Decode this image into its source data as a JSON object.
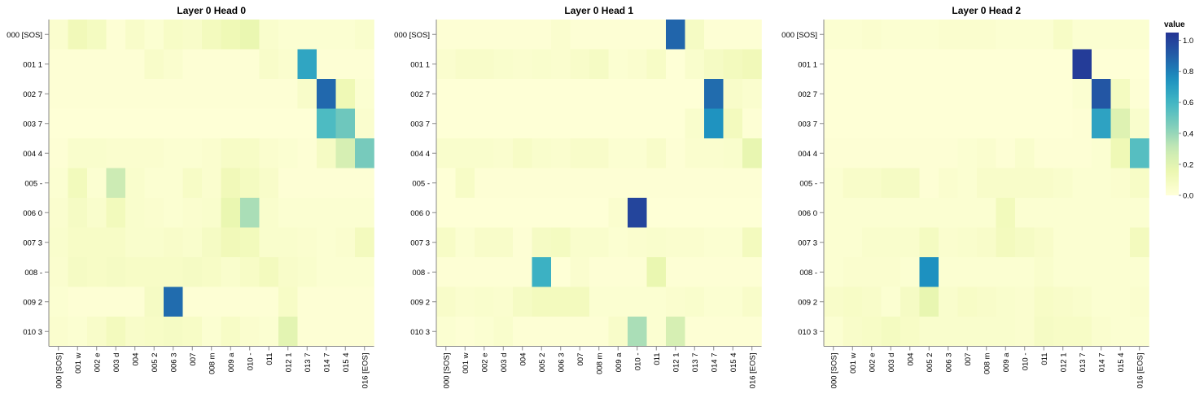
{
  "chart_data": [
    {
      "type": "heatmap",
      "title": "Layer 0 Head 0",
      "x_categories": [
        "000 [SOS]",
        "001 w",
        "002 e",
        "003 d",
        "004",
        "005 2",
        "006 3",
        "007",
        "008 m",
        "009 a",
        "010 -",
        "011",
        "012 1",
        "013 7",
        "014 7",
        "015 4",
        "016 [EOS]"
      ],
      "y_categories": [
        "000 [SOS]",
        "001 1",
        "002 7",
        "003 7",
        "004 4",
        "005 -",
        "006 0",
        "007 3",
        "008 -",
        "009 2",
        "010 3"
      ],
      "values": [
        [
          0.04,
          0.12,
          0.09,
          0.02,
          0.06,
          0.03,
          0.07,
          0.06,
          0.1,
          0.13,
          0.16,
          0.05,
          0.03,
          0.03,
          0.03,
          0.03,
          0.05
        ],
        [
          0.02,
          0.02,
          0.02,
          0.02,
          0.02,
          0.06,
          0.04,
          0.02,
          0.02,
          0.02,
          0.02,
          0.06,
          0.04,
          0.67,
          0.02,
          0.02,
          0.02
        ],
        [
          0.02,
          0.02,
          0.02,
          0.02,
          0.02,
          0.02,
          0.02,
          0.02,
          0.02,
          0.02,
          0.02,
          0.02,
          0.02,
          0.06,
          0.87,
          0.13,
          0.03
        ],
        [
          0.01,
          0.01,
          0.01,
          0.01,
          0.01,
          0.01,
          0.01,
          0.01,
          0.01,
          0.01,
          0.01,
          0.01,
          0.01,
          0.01,
          0.57,
          0.49,
          0.04
        ],
        [
          0.02,
          0.05,
          0.05,
          0.04,
          0.04,
          0.04,
          0.03,
          0.03,
          0.04,
          0.07,
          0.07,
          0.04,
          0.03,
          0.02,
          0.08,
          0.24,
          0.47
        ],
        [
          0.03,
          0.11,
          0.03,
          0.28,
          0.05,
          0.03,
          0.03,
          0.07,
          0.04,
          0.12,
          0.09,
          0.06,
          0.02,
          0.02,
          0.02,
          0.02,
          0.02
        ],
        [
          0.04,
          0.08,
          0.05,
          0.11,
          0.05,
          0.04,
          0.03,
          0.04,
          0.05,
          0.16,
          0.36,
          0.05,
          0.03,
          0.03,
          0.03,
          0.03,
          0.03
        ],
        [
          0.05,
          0.07,
          0.07,
          0.07,
          0.05,
          0.05,
          0.06,
          0.05,
          0.08,
          0.12,
          0.11,
          0.05,
          0.05,
          0.04,
          0.03,
          0.04,
          0.1
        ],
        [
          0.04,
          0.08,
          0.07,
          0.08,
          0.07,
          0.07,
          0.07,
          0.08,
          0.07,
          0.05,
          0.07,
          0.1,
          0.06,
          0.05,
          0.03,
          0.03,
          0.03
        ],
        [
          0.03,
          0.02,
          0.02,
          0.02,
          0.02,
          0.08,
          0.86,
          0.02,
          0.02,
          0.02,
          0.02,
          0.02,
          0.07,
          0.02,
          0.02,
          0.02,
          0.02
        ],
        [
          0.04,
          0.03,
          0.06,
          0.1,
          0.06,
          0.07,
          0.08,
          0.07,
          0.03,
          0.07,
          0.04,
          0.03,
          0.19,
          0.02,
          0.02,
          0.02,
          0.02
        ]
      ]
    },
    {
      "type": "heatmap",
      "title": "Layer 0 Head 1",
      "x_categories": [
        "000 [SOS]",
        "001 w",
        "002 e",
        "003 d",
        "004",
        "005 2",
        "006 3",
        "007",
        "008 m",
        "009 a",
        "010 -",
        "011",
        "012 1",
        "013 7",
        "014 7",
        "015 4",
        "016 [EOS]"
      ],
      "y_categories": [
        "000 [SOS]",
        "001 1",
        "002 7",
        "003 7",
        "004 4",
        "005 -",
        "006 0",
        "007 3",
        "008 -",
        "009 2",
        "010 3"
      ],
      "values": [
        [
          0.02,
          0.02,
          0.02,
          0.02,
          0.02,
          0.02,
          0.04,
          0.02,
          0.02,
          0.02,
          0.02,
          0.02,
          0.88,
          0.08,
          0.02,
          0.02,
          0.02
        ],
        [
          0.04,
          0.06,
          0.06,
          0.05,
          0.04,
          0.05,
          0.04,
          0.06,
          0.08,
          0.03,
          0.04,
          0.07,
          0.01,
          0.05,
          0.08,
          0.1,
          0.12
        ],
        [
          0.01,
          0.01,
          0.01,
          0.01,
          0.01,
          0.01,
          0.01,
          0.01,
          0.01,
          0.01,
          0.01,
          0.01,
          0.01,
          0.01,
          0.86,
          0.06,
          0.04
        ],
        [
          0.01,
          0.01,
          0.01,
          0.01,
          0.01,
          0.01,
          0.01,
          0.01,
          0.01,
          0.01,
          0.01,
          0.01,
          0.01,
          0.05,
          0.74,
          0.1,
          0.02
        ],
        [
          0.05,
          0.05,
          0.05,
          0.04,
          0.07,
          0.05,
          0.04,
          0.06,
          0.06,
          0.03,
          0.03,
          0.06,
          0.02,
          0.04,
          0.04,
          0.05,
          0.17
        ],
        [
          0.01,
          0.07,
          0.02,
          0.02,
          0.02,
          0.02,
          0.02,
          0.02,
          0.02,
          0.02,
          0.02,
          0.02,
          0.02,
          0.02,
          0.02,
          0.02,
          0.02
        ],
        [
          0.01,
          0.01,
          0.01,
          0.01,
          0.01,
          0.01,
          0.01,
          0.01,
          0.01,
          0.04,
          0.99,
          0.01,
          0.01,
          0.01,
          0.01,
          0.01,
          0.01
        ],
        [
          0.07,
          0.03,
          0.06,
          0.06,
          0.02,
          0.08,
          0.09,
          0.05,
          0.05,
          0.03,
          0.04,
          0.05,
          0.04,
          0.04,
          0.03,
          0.03,
          0.1
        ],
        [
          0.02,
          0.02,
          0.02,
          0.02,
          0.02,
          0.62,
          0.01,
          0.04,
          0.02,
          0.02,
          0.02,
          0.16,
          0.02,
          0.02,
          0.02,
          0.02,
          0.02
        ],
        [
          0.06,
          0.04,
          0.05,
          0.04,
          0.08,
          0.1,
          0.1,
          0.1,
          0.03,
          0.03,
          0.03,
          0.03,
          0.04,
          0.05,
          0.03,
          0.03,
          0.06
        ],
        [
          0.03,
          0.02,
          0.03,
          0.05,
          0.02,
          0.02,
          0.02,
          0.02,
          0.02,
          0.06,
          0.36,
          0.03,
          0.24,
          0.02,
          0.02,
          0.02,
          0.02
        ]
      ]
    },
    {
      "type": "heatmap",
      "title": "Layer 0 Head 2",
      "x_categories": [
        "000 [SOS]",
        "001 w",
        "002 e",
        "003 d",
        "004",
        "005 2",
        "006 3",
        "007",
        "008 m",
        "009 a",
        "010 -",
        "011",
        "012 1",
        "013 7",
        "014 7",
        "015 4",
        "016 [EOS]"
      ],
      "y_categories": [
        "000 [SOS]",
        "001 1",
        "002 7",
        "003 7",
        "004 4",
        "005 -",
        "006 0",
        "007 3",
        "008 -",
        "009 2",
        "010 3"
      ],
      "values": [
        [
          0.03,
          0.03,
          0.04,
          0.03,
          0.03,
          0.03,
          0.04,
          0.04,
          0.04,
          0.03,
          0.03,
          0.03,
          0.07,
          0.03,
          0.03,
          0.03,
          0.03
        ],
        [
          0.01,
          0.01,
          0.01,
          0.01,
          0.01,
          0.01,
          0.01,
          0.01,
          0.01,
          0.01,
          0.01,
          0.01,
          0.01,
          1.02,
          0.01,
          0.01,
          0.01
        ],
        [
          0.01,
          0.01,
          0.01,
          0.01,
          0.01,
          0.01,
          0.01,
          0.01,
          0.01,
          0.01,
          0.01,
          0.01,
          0.01,
          0.03,
          0.93,
          0.09,
          0.02
        ],
        [
          0.01,
          0.01,
          0.01,
          0.01,
          0.01,
          0.01,
          0.01,
          0.01,
          0.01,
          0.01,
          0.01,
          0.01,
          0.01,
          0.02,
          0.68,
          0.21,
          0.05
        ],
        [
          0.02,
          0.02,
          0.02,
          0.02,
          0.02,
          0.02,
          0.02,
          0.03,
          0.04,
          0.02,
          0.05,
          0.02,
          0.02,
          0.02,
          0.03,
          0.13,
          0.55
        ],
        [
          0.03,
          0.06,
          0.06,
          0.08,
          0.08,
          0.02,
          0.04,
          0.03,
          0.06,
          0.06,
          0.06,
          0.06,
          0.05,
          0.03,
          0.03,
          0.04,
          0.07
        ],
        [
          0.03,
          0.03,
          0.03,
          0.03,
          0.03,
          0.03,
          0.03,
          0.03,
          0.03,
          0.11,
          0.03,
          0.03,
          0.03,
          0.03,
          0.03,
          0.03,
          0.03
        ],
        [
          0.03,
          0.03,
          0.05,
          0.05,
          0.05,
          0.09,
          0.04,
          0.05,
          0.06,
          0.1,
          0.08,
          0.06,
          0.03,
          0.03,
          0.03,
          0.03,
          0.1
        ],
        [
          0.03,
          0.04,
          0.04,
          0.04,
          0.03,
          0.75,
          0.03,
          0.03,
          0.03,
          0.03,
          0.03,
          0.05,
          0.03,
          0.03,
          0.03,
          0.03,
          0.03
        ],
        [
          0.06,
          0.07,
          0.06,
          0.03,
          0.08,
          0.17,
          0.05,
          0.07,
          0.06,
          0.05,
          0.04,
          0.07,
          0.06,
          0.05,
          0.03,
          0.03,
          0.04
        ],
        [
          0.03,
          0.06,
          0.07,
          0.09,
          0.07,
          0.05,
          0.05,
          0.05,
          0.05,
          0.05,
          0.04,
          0.08,
          0.07,
          0.07,
          0.04,
          0.03,
          0.03
        ]
      ]
    }
  ],
  "legend": {
    "title": "value",
    "ticks": [
      "1.0",
      "0.8",
      "0.6",
      "0.4",
      "0.2",
      "0.0"
    ],
    "tick_values": [
      1.0,
      0.8,
      0.6,
      0.4,
      0.2,
      0.0
    ],
    "domain": [
      0,
      1.05
    ]
  },
  "colors": {
    "scale": [
      "#ffffd9",
      "#edf8b1",
      "#c7e9b4",
      "#7fcdbb",
      "#41b6c4",
      "#1d91c0",
      "#225ea8",
      "#253494",
      "#081d58"
    ],
    "text": "#000000",
    "tick": "#888888",
    "background": "#ffffff"
  }
}
